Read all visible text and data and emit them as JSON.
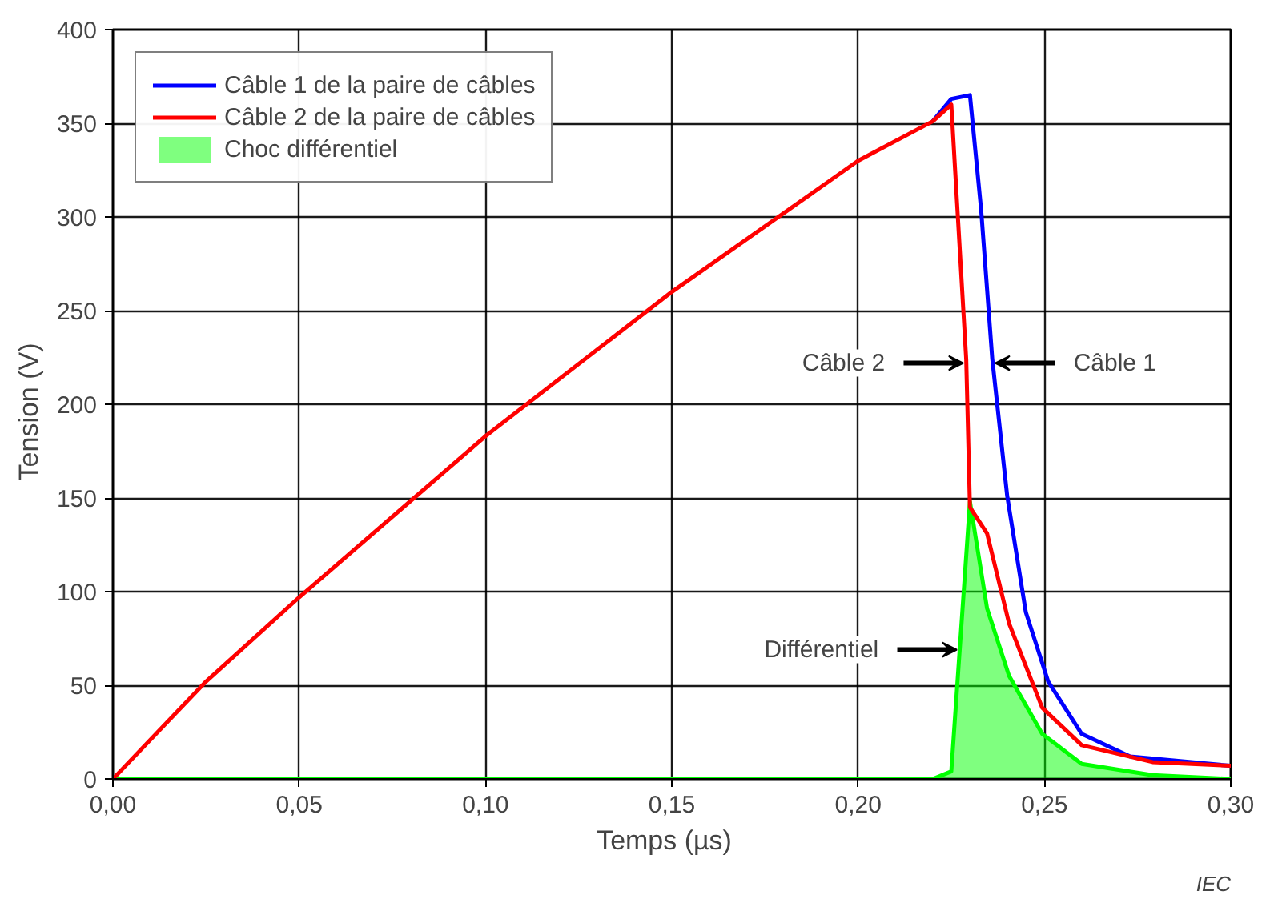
{
  "chart_data": {
    "type": "line",
    "xlabel": "Temps   (µs)",
    "ylabel": "Tension   (V)",
    "xlim": [
      0,
      0.3
    ],
    "ylim": [
      0,
      400
    ],
    "xticks": [
      {
        "value": 0,
        "label": "0,00"
      },
      {
        "value": 0.05,
        "label": "0,05"
      },
      {
        "value": 0.1,
        "label": "0,10"
      },
      {
        "value": 0.15,
        "label": "0,15"
      },
      {
        "value": 0.2,
        "label": "0,20"
      },
      {
        "value": 0.25,
        "label": "0,25"
      },
      {
        "value": 0.3,
        "label": "0,30"
      }
    ],
    "yticks": [
      0,
      50,
      100,
      150,
      200,
      250,
      300,
      350,
      400
    ],
    "grid": true,
    "legend": "top left",
    "series": [
      {
        "name": "Câble 1 de la paire de câbles",
        "color": "#0000ff",
        "x": [
          0.22,
          0.225,
          0.23,
          0.233,
          0.236,
          0.24,
          0.245,
          0.251,
          0.26,
          0.273,
          0.3
        ],
        "values": [
          351,
          363,
          365,
          304,
          224,
          151,
          89,
          52,
          24,
          12,
          7
        ]
      },
      {
        "name": "Câble 2 de la paire de câbles",
        "color": "#ff0000",
        "x": [
          0,
          0.025,
          0.05,
          0.1,
          0.15,
          0.2,
          0.22,
          0.225,
          0.229,
          0.23,
          0.2346,
          0.2405,
          0.2494,
          0.26,
          0.279,
          0.3
        ],
        "values": [
          0,
          52,
          97,
          183,
          260,
          330,
          351,
          360,
          224,
          145,
          131,
          83,
          38,
          18,
          9,
          7
        ]
      },
      {
        "name": "Choc différentiel",
        "type": "area",
        "color": "#00ff00",
        "x": [
          0,
          0.22,
          0.225,
          0.23,
          0.2346,
          0.2405,
          0.2494,
          0.26,
          0.279,
          0.3
        ],
        "values": [
          0,
          0,
          4,
          148,
          91,
          55,
          24,
          8,
          2,
          0
        ]
      }
    ],
    "annotations": [
      {
        "text": "Câble 2",
        "x": 0.229,
        "y": 222
      },
      {
        "text": "Câble 1",
        "x": 0.236,
        "y": 222
      },
      {
        "text": "Différentiel",
        "x": 0.2273,
        "y": 69
      },
      "IEC"
    ]
  }
}
